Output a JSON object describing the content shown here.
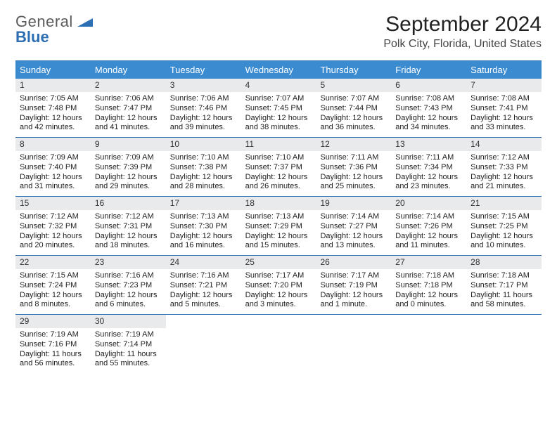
{
  "brand": {
    "word1": "General",
    "word2": "Blue",
    "word2_color": "#2d6fb3",
    "word1_color": "#5b5b5b",
    "tri_color": "#2d6fb3"
  },
  "header": {
    "month_title": "September 2024",
    "location": "Polk City, Florida, United States"
  },
  "colors": {
    "header_bg": "#3b8bd1",
    "header_border": "#2d6fb3",
    "daynum_bg": "#e9eaeb",
    "text": "#222222"
  },
  "layout": {
    "cols": 7,
    "cell_fontsize": 11,
    "header_fontsize": 13
  },
  "dow": [
    "Sunday",
    "Monday",
    "Tuesday",
    "Wednesday",
    "Thursday",
    "Friday",
    "Saturday"
  ],
  "weeks": [
    [
      {
        "n": "1",
        "sr": "7:05 AM",
        "ss": "7:48 PM",
        "dl": "12 hours and 42 minutes."
      },
      {
        "n": "2",
        "sr": "7:06 AM",
        "ss": "7:47 PM",
        "dl": "12 hours and 41 minutes."
      },
      {
        "n": "3",
        "sr": "7:06 AM",
        "ss": "7:46 PM",
        "dl": "12 hours and 39 minutes."
      },
      {
        "n": "4",
        "sr": "7:07 AM",
        "ss": "7:45 PM",
        "dl": "12 hours and 38 minutes."
      },
      {
        "n": "5",
        "sr": "7:07 AM",
        "ss": "7:44 PM",
        "dl": "12 hours and 36 minutes."
      },
      {
        "n": "6",
        "sr": "7:08 AM",
        "ss": "7:43 PM",
        "dl": "12 hours and 34 minutes."
      },
      {
        "n": "7",
        "sr": "7:08 AM",
        "ss": "7:41 PM",
        "dl": "12 hours and 33 minutes."
      }
    ],
    [
      {
        "n": "8",
        "sr": "7:09 AM",
        "ss": "7:40 PM",
        "dl": "12 hours and 31 minutes."
      },
      {
        "n": "9",
        "sr": "7:09 AM",
        "ss": "7:39 PM",
        "dl": "12 hours and 29 minutes."
      },
      {
        "n": "10",
        "sr": "7:10 AM",
        "ss": "7:38 PM",
        "dl": "12 hours and 28 minutes."
      },
      {
        "n": "11",
        "sr": "7:10 AM",
        "ss": "7:37 PM",
        "dl": "12 hours and 26 minutes."
      },
      {
        "n": "12",
        "sr": "7:11 AM",
        "ss": "7:36 PM",
        "dl": "12 hours and 25 minutes."
      },
      {
        "n": "13",
        "sr": "7:11 AM",
        "ss": "7:34 PM",
        "dl": "12 hours and 23 minutes."
      },
      {
        "n": "14",
        "sr": "7:12 AM",
        "ss": "7:33 PM",
        "dl": "12 hours and 21 minutes."
      }
    ],
    [
      {
        "n": "15",
        "sr": "7:12 AM",
        "ss": "7:32 PM",
        "dl": "12 hours and 20 minutes."
      },
      {
        "n": "16",
        "sr": "7:12 AM",
        "ss": "7:31 PM",
        "dl": "12 hours and 18 minutes."
      },
      {
        "n": "17",
        "sr": "7:13 AM",
        "ss": "7:30 PM",
        "dl": "12 hours and 16 minutes."
      },
      {
        "n": "18",
        "sr": "7:13 AM",
        "ss": "7:29 PM",
        "dl": "12 hours and 15 minutes."
      },
      {
        "n": "19",
        "sr": "7:14 AM",
        "ss": "7:27 PM",
        "dl": "12 hours and 13 minutes."
      },
      {
        "n": "20",
        "sr": "7:14 AM",
        "ss": "7:26 PM",
        "dl": "12 hours and 11 minutes."
      },
      {
        "n": "21",
        "sr": "7:15 AM",
        "ss": "7:25 PM",
        "dl": "12 hours and 10 minutes."
      }
    ],
    [
      {
        "n": "22",
        "sr": "7:15 AM",
        "ss": "7:24 PM",
        "dl": "12 hours and 8 minutes."
      },
      {
        "n": "23",
        "sr": "7:16 AM",
        "ss": "7:23 PM",
        "dl": "12 hours and 6 minutes."
      },
      {
        "n": "24",
        "sr": "7:16 AM",
        "ss": "7:21 PM",
        "dl": "12 hours and 5 minutes."
      },
      {
        "n": "25",
        "sr": "7:17 AM",
        "ss": "7:20 PM",
        "dl": "12 hours and 3 minutes."
      },
      {
        "n": "26",
        "sr": "7:17 AM",
        "ss": "7:19 PM",
        "dl": "12 hours and 1 minute."
      },
      {
        "n": "27",
        "sr": "7:18 AM",
        "ss": "7:18 PM",
        "dl": "12 hours and 0 minutes."
      },
      {
        "n": "28",
        "sr": "7:18 AM",
        "ss": "7:17 PM",
        "dl": "11 hours and 58 minutes."
      }
    ],
    [
      {
        "n": "29",
        "sr": "7:19 AM",
        "ss": "7:16 PM",
        "dl": "11 hours and 56 minutes."
      },
      {
        "n": "30",
        "sr": "7:19 AM",
        "ss": "7:14 PM",
        "dl": "11 hours and 55 minutes."
      },
      null,
      null,
      null,
      null,
      null
    ]
  ],
  "labels": {
    "sunrise": "Sunrise:",
    "sunset": "Sunset:",
    "daylight": "Daylight:"
  }
}
